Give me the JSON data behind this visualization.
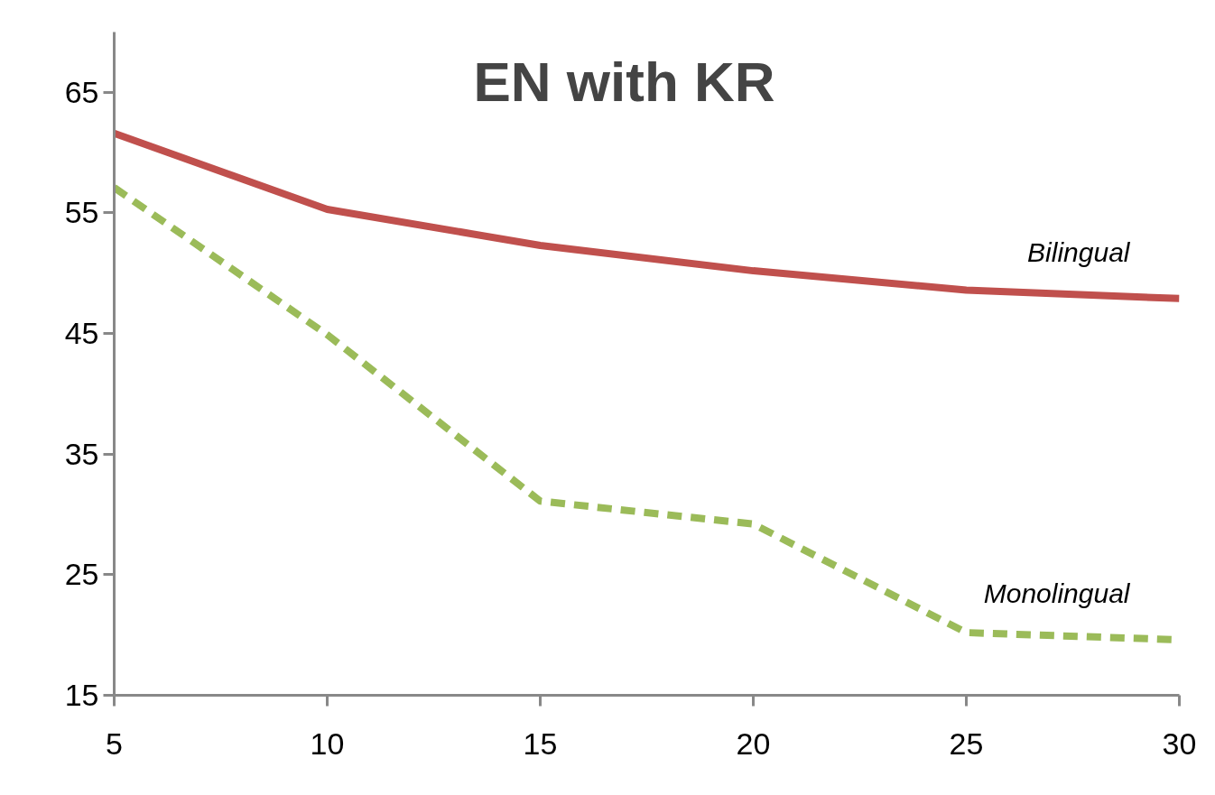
{
  "chart_data": {
    "type": "line",
    "title": "EN with KR",
    "x": [
      5,
      10,
      15,
      20,
      25,
      30
    ],
    "series": [
      {
        "name": "Bilingual",
        "color": "#c0504d",
        "line_style": "solid",
        "values": [
          61.6,
          55.3,
          52.3,
          50.2,
          48.6,
          47.9
        ]
      },
      {
        "name": "Monolingual",
        "color": "#9bbb59",
        "line_style": "dashed",
        "values": [
          57.1,
          44.9,
          31.1,
          29.2,
          20.2,
          19.6
        ]
      }
    ],
    "xlim": [
      5,
      30
    ],
    "xticks": [
      5,
      10,
      15,
      20,
      25,
      30
    ],
    "ylim": [
      15,
      70
    ],
    "yticks": [
      15,
      25,
      35,
      45,
      55,
      65
    ],
    "grid": false,
    "legend": false,
    "marker": "none"
  }
}
